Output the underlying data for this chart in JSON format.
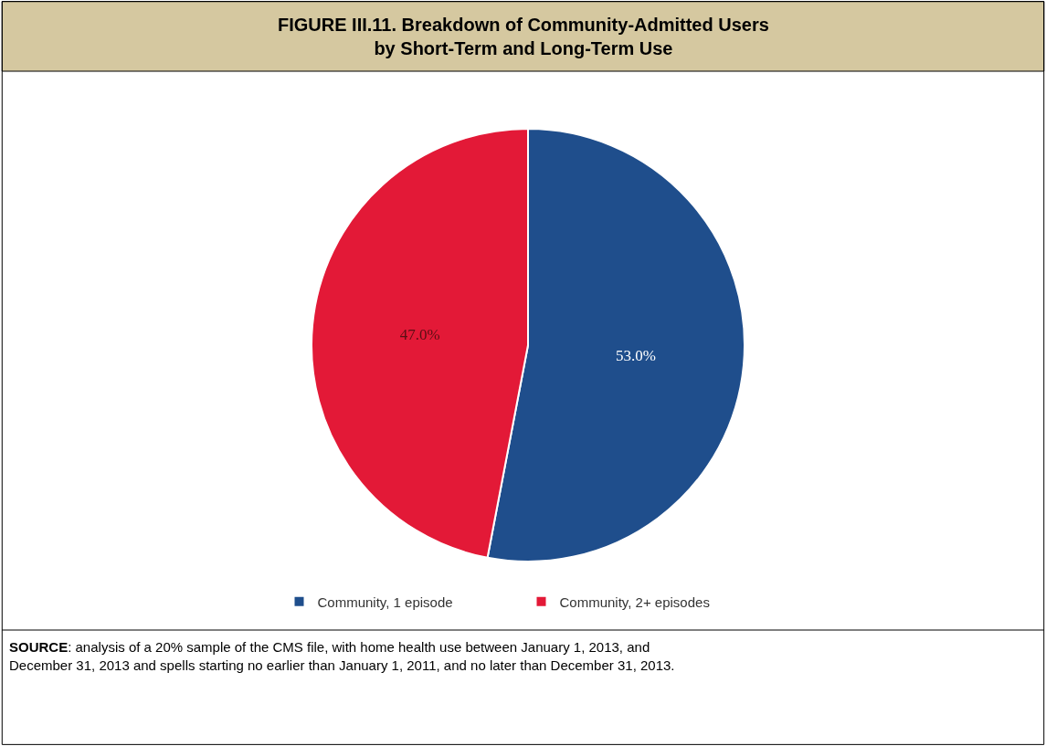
{
  "chart_data": {
    "type": "pie",
    "title": "FIGURE III.11. Breakdown of Community-Admitted Users by Short-Term and Long-Term Use",
    "categories": [
      "Community, 1 episode",
      "Community, 2+ episodes"
    ],
    "values": [
      53.0,
      47.0
    ],
    "colors": [
      "#1f4e8c",
      "#e31937"
    ],
    "value_labels": [
      "53.0%",
      "47.0%"
    ],
    "legend": "bottom",
    "annotations": [
      "SOURCE: analysis of a 20% sample of the CMS file, with home health use between January 1, 2013, and December 31, 2013 and spells starting no earlier than January 1, 2011, and no later than December 31, 2013."
    ]
  }
}
